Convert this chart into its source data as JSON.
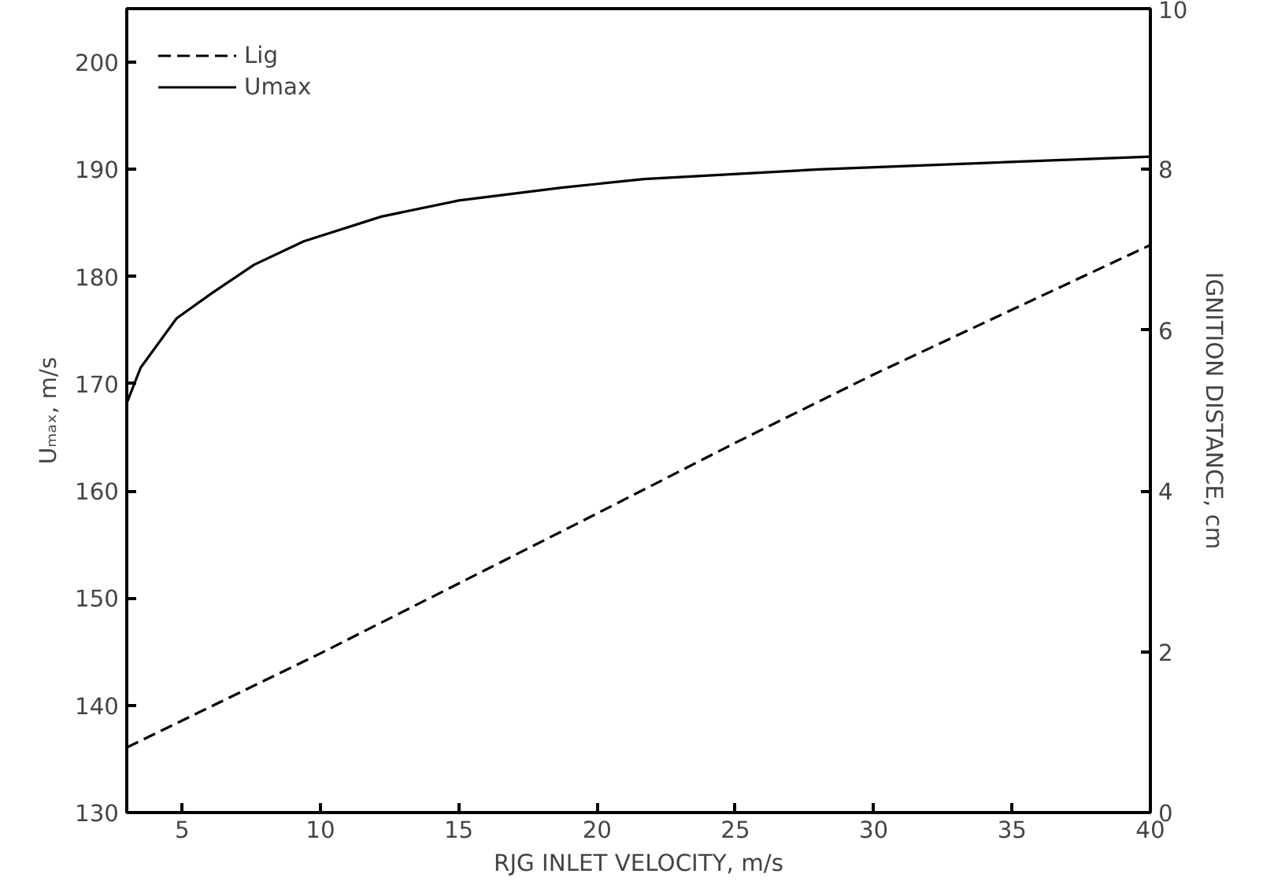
{
  "chart_data": {
    "type": "line",
    "xlabel": "RJG INLET VELOCITY, m/s",
    "ylabel": "Uₘₐₓ, m/s",
    "y2label": "IGNITION DISTANCE, cm",
    "xlim": [
      3,
      40
    ],
    "xticks": [
      5,
      10,
      15,
      20,
      25,
      30,
      35,
      40
    ],
    "ylim": [
      130,
      205
    ],
    "yticks": [
      130,
      140,
      150,
      160,
      170,
      180,
      190,
      200
    ],
    "y2lim": [
      0,
      10
    ],
    "y2ticks": [
      0,
      2,
      4,
      6,
      8,
      10
    ],
    "grid": false,
    "legend": "top left",
    "marker": "none",
    "series": [
      {
        "name": "Lig",
        "color": "#000000",
        "axis": "y2",
        "line_style": "dashed",
        "x": [
          3,
          10,
          20,
          25,
          30,
          40
        ],
        "values": [
          0.81,
          1.98,
          3.72,
          4.6,
          5.45,
          7.06
        ]
      },
      {
        "name": "Umax",
        "color": "#000000",
        "line_style": "solid",
        "x": [
          3,
          3.5,
          4.8,
          6.1,
          7.6,
          9.4,
          12.2,
          15,
          18.7,
          21.7,
          28,
          40
        ],
        "values": [
          168.2,
          171.5,
          176.1,
          178.5,
          181.1,
          183.3,
          185.6,
          187.1,
          188.3,
          189.1,
          190.0,
          191.2
        ]
      }
    ]
  }
}
